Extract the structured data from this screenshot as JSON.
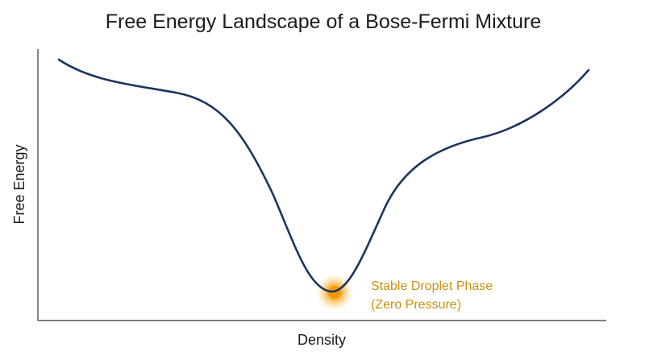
{
  "title": "Free Energy Landscape of a Bose-Fermi Mixture",
  "axes": {
    "xlabel": "Density",
    "ylabel": "Free Energy"
  },
  "annotation": {
    "line1": "Stable Droplet Phase",
    "line2": "(Zero Pressure)"
  },
  "colors": {
    "curve": "#1c3461",
    "axis": "#333333",
    "annotation": "#c8900f",
    "glow": "#f5a000"
  }
}
